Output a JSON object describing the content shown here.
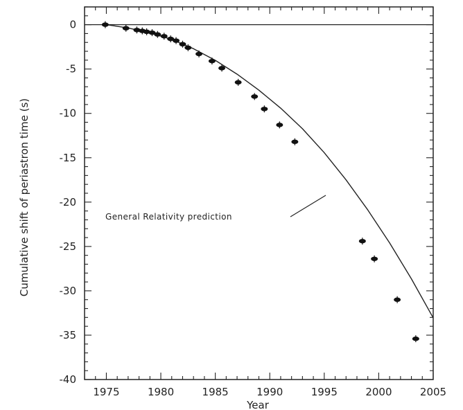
{
  "chart_data": {
    "type": "scatter",
    "xlabel": "Year",
    "ylabel": "Cumulative shift of periastron time (s)",
    "xlim": [
      1973,
      2005
    ],
    "ylim": [
      -40,
      2
    ],
    "xticks": [
      1975,
      1980,
      1985,
      1990,
      1995,
      2000,
      2005
    ],
    "yticks": [
      0,
      -5,
      -10,
      -15,
      -20,
      -25,
      -30,
      -35,
      -40
    ],
    "grid": false,
    "series": [
      {
        "type": "scatter",
        "x": [
          1974.9,
          1976.8,
          1977.8,
          1978.3,
          1978.7,
          1979.2,
          1979.7,
          1980.3,
          1980.9,
          1981.4,
          1982.0,
          1982.5,
          1983.5,
          1984.7,
          1985.6,
          1987.1,
          1988.6,
          1989.5,
          1990.9,
          1992.3,
          1998.5,
          1999.6,
          2001.7,
          2003.4
        ],
        "y": [
          0.0,
          -0.4,
          -0.6,
          -0.7,
          -0.8,
          -0.9,
          -1.1,
          -1.3,
          -1.6,
          -1.8,
          -2.2,
          -2.6,
          -3.3,
          -4.1,
          -4.9,
          -6.5,
          -8.1,
          -9.5,
          -11.3,
          -13.2,
          -24.4,
          -26.4,
          -31.0,
          -35.4
        ]
      },
      {
        "type": "line",
        "x": [
          1975,
          1977,
          1979,
          1981,
          1983,
          1985,
          1987,
          1989,
          1991,
          1993,
          1995,
          1997,
          1999,
          2001,
          2003,
          2005
        ],
        "y": [
          0.0,
          -0.38,
          -0.91,
          -1.67,
          -2.71,
          -4.02,
          -5.58,
          -7.38,
          -9.41,
          -11.73,
          -14.43,
          -17.49,
          -20.89,
          -24.6,
          -28.65,
          -33.05
        ]
      },
      {
        "type": "line",
        "x": [
          1973,
          2005
        ],
        "y": [
          0,
          0
        ]
      }
    ],
    "annotations": [
      {
        "text": "General Relativity prediction"
      }
    ]
  }
}
